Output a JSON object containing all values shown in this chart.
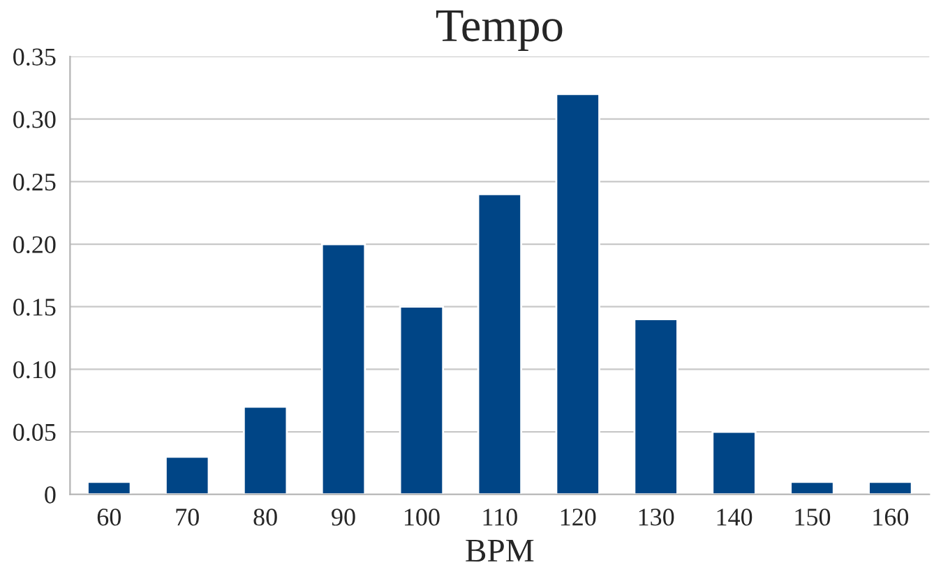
{
  "chart_data": {
    "type": "bar",
    "title": "Tempo",
    "xlabel": "BPM",
    "categories": [
      "60",
      "70",
      "80",
      "90",
      "100",
      "110",
      "120",
      "130",
      "140",
      "150",
      "160"
    ],
    "values": [
      0.01,
      0.03,
      0.07,
      0.2,
      0.15,
      0.24,
      0.32,
      0.14,
      0.05,
      0.01,
      0.01
    ],
    "color": "#004586",
    "ylim": [
      0,
      0.35
    ],
    "yticks": [
      0,
      {
        "value": 0.05,
        "label": "0.05"
      },
      {
        "value": 0.1,
        "label": "0.10"
      },
      {
        "value": 0.15,
        "label": "0.15"
      },
      {
        "value": 0.2,
        "label": "0.20"
      },
      {
        "value": 0.25,
        "label": "0.25"
      },
      {
        "value": 0.3,
        "label": "0.30"
      },
      {
        "value": 0.35,
        "label": "0.35"
      }
    ],
    "grid": "y"
  }
}
